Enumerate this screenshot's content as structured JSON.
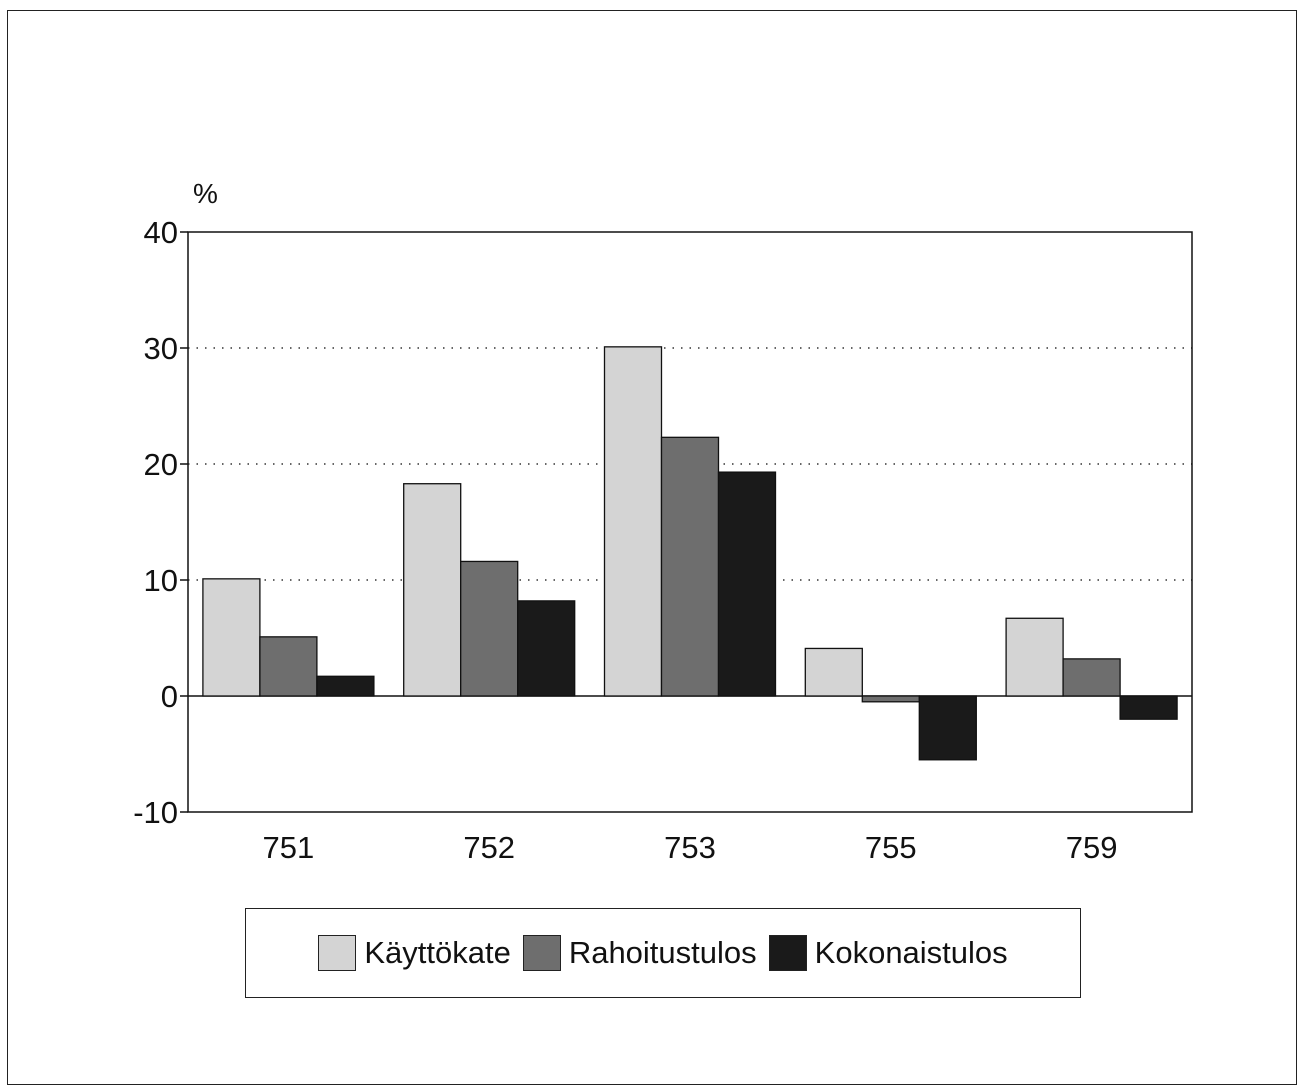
{
  "chart_data": {
    "type": "bar",
    "title": "",
    "xlabel": "",
    "ylabel": "%",
    "categories": [
      "751",
      "752",
      "753",
      "755",
      "759"
    ],
    "series": [
      {
        "name": "Käyttökate",
        "values": [
          10.1,
          18.3,
          30.1,
          4.1,
          6.7
        ],
        "color": "#d4d4d4"
      },
      {
        "name": "Rahoitustulos",
        "values": [
          5.1,
          11.6,
          22.3,
          -0.5,
          3.2
        ],
        "color": "#6e6e6e"
      },
      {
        "name": "Kokonaistulos",
        "values": [
          1.7,
          8.2,
          19.3,
          -5.5,
          -2.0
        ],
        "color": "#1a1a1a"
      }
    ],
    "ylim": [
      -10,
      40
    ],
    "yticks": [
      -10,
      0,
      10,
      20,
      30,
      40
    ],
    "grid": "horizontal dotted",
    "legend": "bottom"
  }
}
